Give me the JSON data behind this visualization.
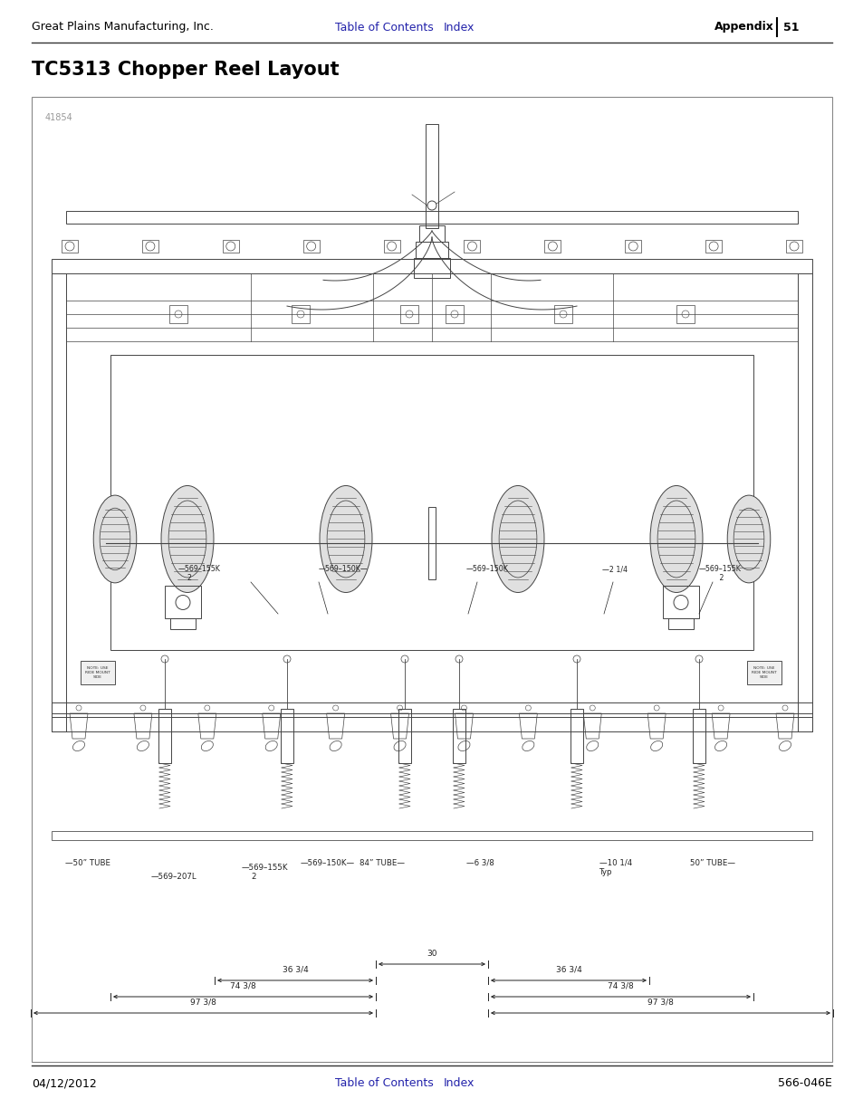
{
  "page_bg": "#ffffff",
  "header_left": "Great Plains Manufacturing, Inc.",
  "header_center_link1": "Table of Contents",
  "header_center_link2": "Index",
  "header_right_bold": "Appendix",
  "header_right_num": "51",
  "title": "TC5313 Chopper Reel Layout",
  "diagram_label": "41854",
  "footer_left": "04/12/2012",
  "footer_center_link1": "Table of Contents",
  "footer_center_link2": "Index",
  "footer_right": "566-046E",
  "link_color": "#2222aa",
  "text_color": "#000000",
  "gray_color": "#999999",
  "diagram_line_color": "#444444",
  "header_fontsize": 9,
  "title_fontsize": 15,
  "footer_fontsize": 9,
  "diagram_label_fontsize": 7
}
